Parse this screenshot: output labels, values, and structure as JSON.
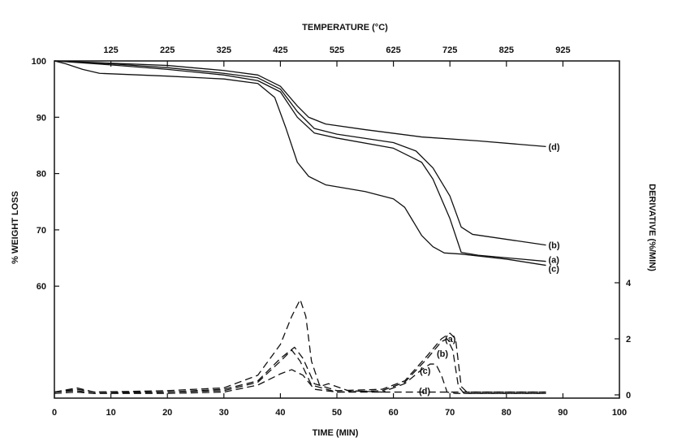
{
  "chart_data": {
    "type": "line",
    "xlabel": "TIME (MIN)",
    "x2label": "TEMPERATURE (°C)",
    "ylabel": "% WEIGHT LOSS",
    "y2label": "DERIVATIVE (%/MIN)",
    "xlim": [
      0,
      100
    ],
    "ylim": [
      53.5,
      100
    ],
    "y2lim": [
      0,
      4
    ],
    "x_ticks": [
      0,
      10,
      20,
      30,
      40,
      50,
      60,
      70,
      80,
      90,
      100
    ],
    "x2_ticks": [
      125,
      225,
      325,
      425,
      525,
      625,
      725,
      825,
      925
    ],
    "y_ticks": [
      60,
      70,
      80,
      90,
      100
    ],
    "y2_ticks": [
      0,
      2,
      4
    ],
    "grid": false,
    "weight_series": [
      {
        "name": "(d)",
        "x": [
          0,
          10,
          20,
          30,
          36,
          40,
          43,
          45,
          48,
          55,
          65,
          75,
          87
        ],
        "y": [
          100,
          99.6,
          99.2,
          98.3,
          97.5,
          95.5,
          92,
          90,
          88.8,
          87.8,
          86.5,
          85.8,
          84.8
        ]
      },
      {
        "name": "(b)",
        "x": [
          0,
          10,
          20,
          30,
          36,
          40,
          43,
          46,
          50,
          60,
          64,
          67,
          70,
          72,
          74,
          87
        ],
        "y": [
          100,
          99.5,
          98.8,
          97.8,
          97,
          95,
          91,
          88,
          87,
          85.5,
          84,
          81,
          76,
          70.5,
          69.2,
          67.3
        ]
      },
      {
        "name": "(a)",
        "x": [
          0,
          10,
          20,
          30,
          36,
          40,
          43,
          46,
          50,
          60,
          65,
          67,
          70,
          72,
          75,
          87
        ],
        "y": [
          100,
          99.3,
          98.5,
          97.5,
          96.5,
          94.5,
          90,
          87.2,
          86.3,
          84.5,
          82,
          79,
          72,
          66,
          65.5,
          64.4
        ]
      },
      {
        "name": "(c)",
        "x": [
          0,
          2,
          5,
          8,
          20,
          30,
          36,
          39,
          41,
          43,
          45,
          48,
          55,
          60,
          62,
          65,
          67,
          69,
          72,
          80,
          87
        ],
        "y": [
          100,
          99.5,
          98.5,
          97.8,
          97.3,
          96.8,
          96,
          93.5,
          88,
          82,
          79.5,
          78,
          76.8,
          75.5,
          74,
          69,
          67,
          65.9,
          65.7,
          64.8,
          63.7
        ]
      }
    ],
    "derivative_series": [
      {
        "name": "(a)",
        "x": [
          0,
          4,
          7,
          20,
          30,
          36,
          40,
          42.5,
          44,
          46,
          50,
          58,
          62,
          66,
          68.5,
          70,
          71,
          72,
          73,
          87
        ],
        "y": [
          0.1,
          0.2,
          0.1,
          0.1,
          0.2,
          0.5,
          1.3,
          1.7,
          1.3,
          0.4,
          0.15,
          0.2,
          0.5,
          1.4,
          2.0,
          2.2,
          2.0,
          0.3,
          0.1,
          0.1
        ]
      },
      {
        "name": "(b)",
        "x": [
          0,
          4,
          7,
          20,
          30,
          36,
          40,
          42,
          43.5,
          45.5,
          50,
          58,
          62,
          66,
          68.5,
          69.5,
          70.5,
          71.5,
          72.5,
          87
        ],
        "y": [
          0.1,
          0.15,
          0.05,
          0.1,
          0.15,
          0.45,
          1.2,
          1.6,
          1.2,
          0.35,
          0.1,
          0.15,
          0.45,
          1.3,
          1.9,
          2.0,
          1.6,
          0.3,
          0.05,
          0.05
        ]
      },
      {
        "name": "(c)",
        "x": [
          0,
          4,
          7,
          20,
          30,
          36,
          40,
          42,
          43.5,
          44.5,
          45.5,
          47,
          48.5,
          52,
          58,
          62,
          65,
          66.5,
          67.5,
          68.5,
          69.5,
          71,
          87
        ],
        "y": [
          0.1,
          0.25,
          0.1,
          0.15,
          0.25,
          0.7,
          1.8,
          2.8,
          3.4,
          2.8,
          1.2,
          0.3,
          0.4,
          0.15,
          0.1,
          0.4,
          0.9,
          1.1,
          1.1,
          0.7,
          0.1,
          0.05,
          0.05
        ]
      },
      {
        "name": "(d)",
        "x": [
          0,
          4,
          7,
          20,
          30,
          36,
          40,
          42,
          44,
          46,
          50,
          60,
          70,
          80,
          87
        ],
        "y": [
          0.05,
          0.1,
          0.05,
          0.05,
          0.1,
          0.35,
          0.75,
          0.9,
          0.7,
          0.2,
          0.1,
          0.1,
          0.1,
          0.1,
          0.1
        ]
      }
    ],
    "line_style": {
      "weight": "solid",
      "derivative": "dashed"
    },
    "color": "#111111"
  }
}
